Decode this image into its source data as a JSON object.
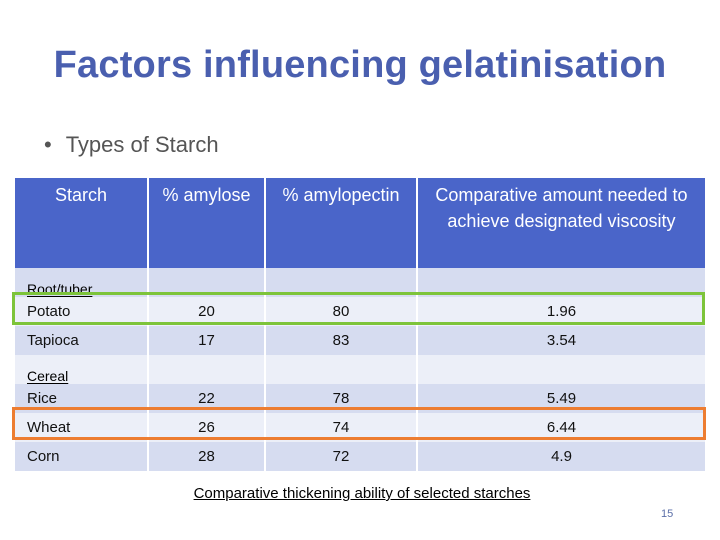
{
  "slide": {
    "title": "Factors influencing gelatinisation",
    "bullet": "Types of Starch",
    "bullet_symbol": "•",
    "caption": "Comparative thickening ability of selected starches",
    "page_number": "15"
  },
  "table": {
    "headers": [
      "Starch",
      "% amylose",
      "% amylopectin",
      "Comparative amount needed to achieve designated viscosity"
    ],
    "sections": [
      {
        "label": "Root/tuber",
        "rows": [
          {
            "name": "Potato",
            "amylose": "20",
            "amylopectin": "80",
            "amount": "1.96"
          },
          {
            "name": "Tapioca",
            "amylose": "17",
            "amylopectin": "83",
            "amount": "3.54"
          }
        ]
      },
      {
        "label": "Cereal",
        "rows": [
          {
            "name": "Rice",
            "amylose": "22",
            "amylopectin": "78",
            "amount": "5.49"
          },
          {
            "name": "Wheat",
            "amylose": "26",
            "amylopectin": "74",
            "amount": "6.44"
          },
          {
            "name": "Corn",
            "amylose": "28",
            "amylopectin": "72",
            "amount": "4.9"
          }
        ]
      }
    ]
  },
  "colors": {
    "title": "#4a5faf",
    "header_bg": "#4a65c9",
    "row_dark": "#d6dcf0",
    "row_light": "#eceff8",
    "highlight_potato": "#7dc43a",
    "highlight_wheat": "#ed7d31"
  }
}
